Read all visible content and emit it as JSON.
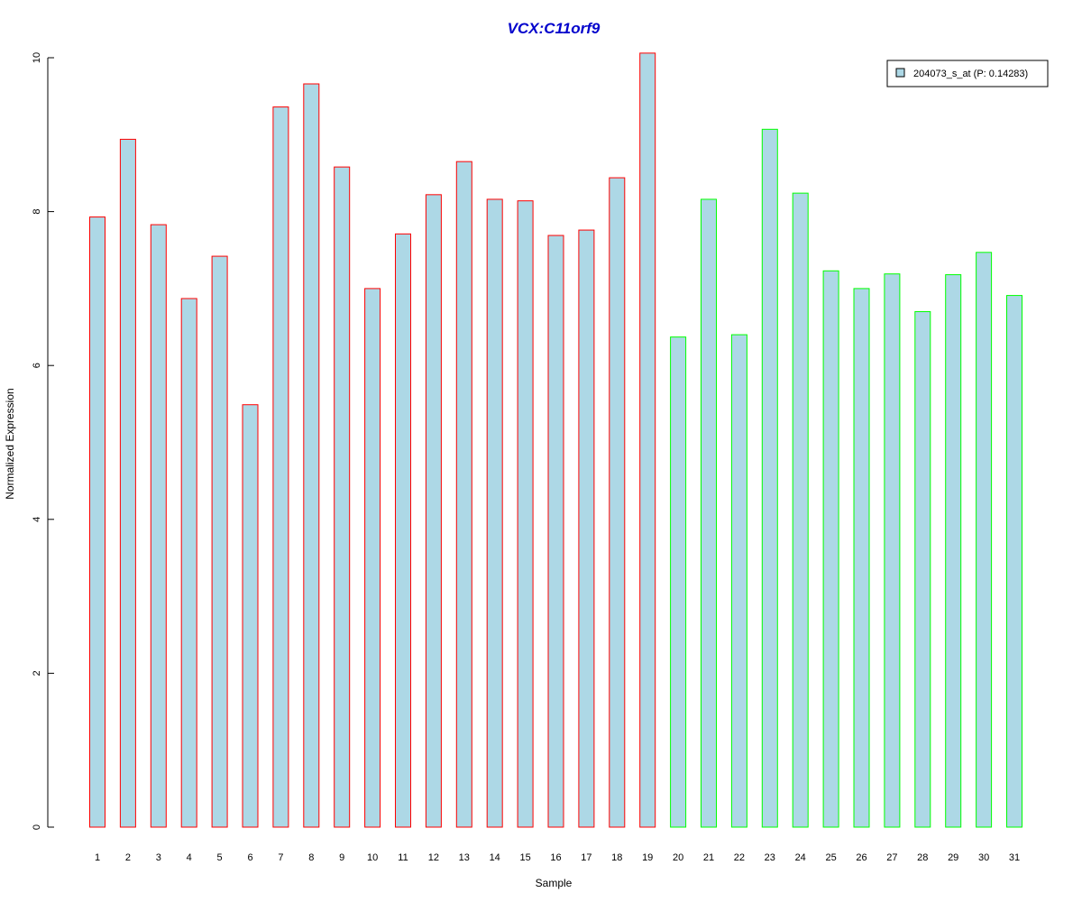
{
  "chart_data": {
    "type": "bar",
    "title": "VCX:C11orf9",
    "xlabel": "Sample",
    "ylabel": "Normalized Expression",
    "ylim": [
      0,
      10
    ],
    "y_ticks": [
      "0",
      "2",
      "4",
      "6",
      "8",
      "10"
    ],
    "categories": [
      "1",
      "2",
      "3",
      "4",
      "5",
      "6",
      "7",
      "8",
      "9",
      "10",
      "11",
      "12",
      "13",
      "14",
      "15",
      "16",
      "17",
      "18",
      "19",
      "20",
      "21",
      "22",
      "23",
      "24",
      "25",
      "26",
      "27",
      "28",
      "29",
      "30",
      "31"
    ],
    "values": [
      7.93,
      8.94,
      7.83,
      6.87,
      7.42,
      5.49,
      9.36,
      9.66,
      8.58,
      7.0,
      7.71,
      8.22,
      8.65,
      8.16,
      8.14,
      7.69,
      7.76,
      8.44,
      10.06,
      6.37,
      8.16,
      6.4,
      9.07,
      8.24,
      7.23,
      7.0,
      7.19,
      6.7,
      7.18,
      7.47,
      6.91
    ],
    "groups": [
      {
        "samples": "1-19",
        "border_color": "#ff0000"
      },
      {
        "samples": "20-31",
        "border_color": "#00ff00"
      }
    ],
    "fill_color": "#add8e6",
    "grid": false,
    "legend": {
      "placement": "top-right",
      "entries": [
        {
          "label": "204073_s_at (P: 0.14283)",
          "color": "#add8e6"
        }
      ]
    }
  }
}
